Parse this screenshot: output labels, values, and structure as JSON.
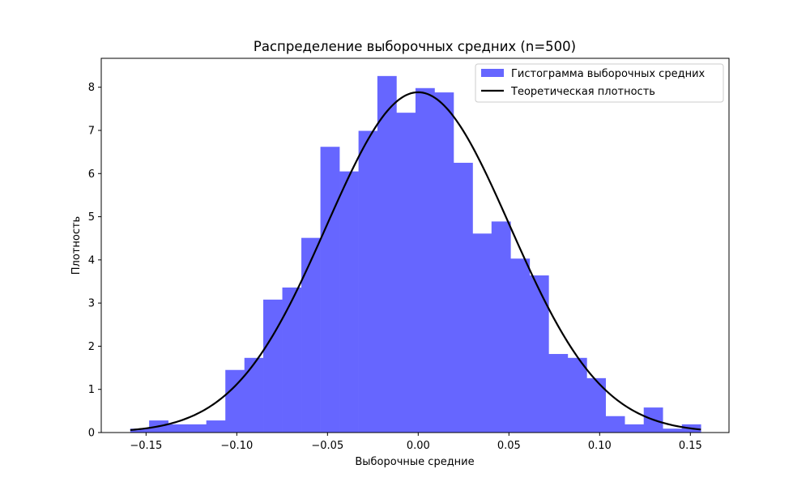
{
  "chart_data": {
    "type": "histogram",
    "title": "Распределение выборочных средних (n=500)",
    "xlabel": "Выборочные средние",
    "ylabel": "Плотность",
    "xlim": [
      -0.1747,
      0.1713
    ],
    "ylim": [
      0,
      8.67
    ],
    "xticks": [
      -0.15,
      -0.1,
      -0.05,
      0.0,
      0.05,
      0.1,
      0.15
    ],
    "xtick_labels": [
      "−0.15",
      "−0.10",
      "−0.05",
      "0.00",
      "0.05",
      "0.10",
      "0.15"
    ],
    "yticks": [
      0,
      1,
      2,
      3,
      4,
      5,
      6,
      7,
      8
    ],
    "ytick_labels": [
      "0",
      "1",
      "2",
      "3",
      "4",
      "5",
      "6",
      "7",
      "8"
    ],
    "grid": false,
    "legend_position": "top-right",
    "bin_edges": [
      -0.1587,
      -0.1483,
      -0.1378,
      -0.1273,
      -0.1168,
      -0.1063,
      -0.0958,
      -0.0854,
      -0.0749,
      -0.0644,
      -0.0539,
      -0.0434,
      -0.0329,
      -0.0225,
      -0.012,
      -0.0015,
      0.009,
      0.0195,
      0.03,
      0.0404,
      0.0509,
      0.0614,
      0.0719,
      0.0824,
      0.0929,
      0.1033,
      0.1138,
      0.1243,
      0.1348,
      0.1453,
      0.1558
    ],
    "densities": [
      0.09,
      0.28,
      0.19,
      0.19,
      0.28,
      1.45,
      1.73,
      3.08,
      3.36,
      4.51,
      6.62,
      6.05,
      6.99,
      8.26,
      7.41,
      7.98,
      7.88,
      6.25,
      4.61,
      4.89,
      4.03,
      3.64,
      1.82,
      1.73,
      1.26,
      0.38,
      0.19,
      0.58,
      0.09,
      0.19
    ],
    "series": [
      {
        "name": "Гистограмма выборочных средних",
        "kind": "histogram",
        "color": "#6666ff"
      },
      {
        "name": "Теоретическая плотность",
        "kind": "line",
        "color": "#000000",
        "mean": 0.0,
        "std": 0.0506,
        "x_range": [
          -0.1587,
          0.1558
        ]
      }
    ]
  }
}
